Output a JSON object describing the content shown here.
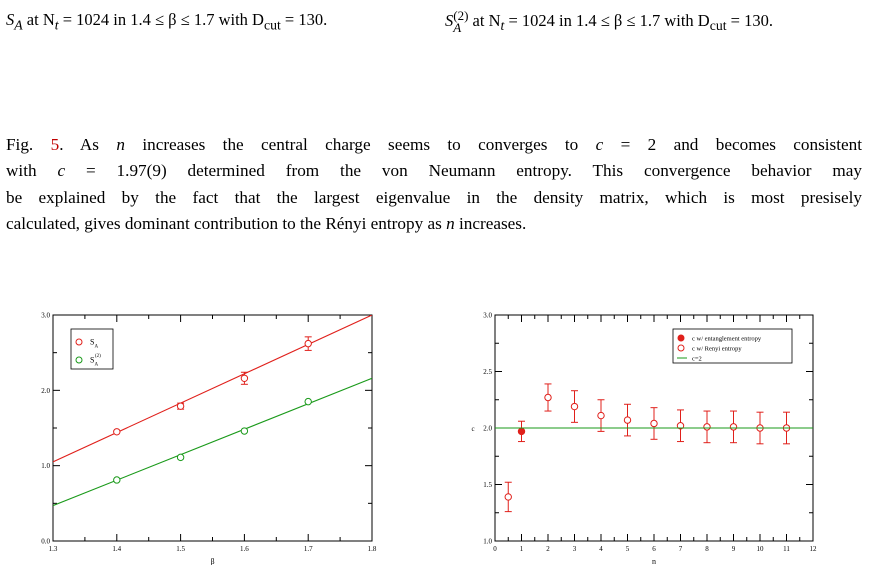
{
  "captions": {
    "left": {
      "prefix": "S",
      "sub": "A",
      "rest": " at N",
      "rest_sub": "t",
      "tail": " = 1024 in 1.4 ≤ β ≤ 1.7 with D",
      "tail_sub": "cut",
      "end": " = 130."
    },
    "right": {
      "prefix": "S",
      "sup": "(2)",
      "sub": "A",
      "rest": " at N",
      "rest_sub": "t",
      "tail": " = 1024 in 1.4 ≤ β ≤ 1.7 with D",
      "tail_sub": "cut",
      "end": " = 130."
    }
  },
  "paragraph": {
    "fig_ref": "Fig. ",
    "fig_num": "5",
    "line1_rest": ".  As n increases the central charge seems to converges to c = 2 and becomes consistent",
    "line2": "with c = 1.97(9) determined from the von Neumann entropy.  This convergence behavior may",
    "line3": "be explained by the fact that the largest eigenvalue in the density matrix, which is most presisely",
    "line4": "calculated, gives dominant contribution to the Rényi entropy as n increases."
  },
  "colors": {
    "red": "#e0201b",
    "green": "#1a9a1a",
    "link": "#c00000"
  },
  "chart_data": [
    {
      "type": "scatter",
      "xlabel": "β",
      "ylabel": "",
      "xlim": [
        1.3,
        1.8
      ],
      "ylim": [
        0.0,
        3.0
      ],
      "xticks": [
        "1.3",
        "1.4",
        "1.5",
        "1.6",
        "1.7",
        "1.8"
      ],
      "yticks": [
        "0.0",
        "1.0",
        "2.0",
        "3.0"
      ],
      "legend_position": "top-left",
      "series": [
        {
          "name": "S",
          "name_sub": "A",
          "color": "red",
          "marker": "open-circle",
          "x": [
            1.4,
            1.5,
            1.6,
            1.7
          ],
          "y": [
            1.45,
            1.79,
            2.16,
            2.62
          ],
          "err": [
            0.0,
            0.04,
            0.08,
            0.09
          ],
          "fit": {
            "x": [
              1.3,
              1.8
            ],
            "y": [
              1.05,
              3.0
            ]
          }
        },
        {
          "name": "S",
          "name_sub": "A",
          "name_sup": "(2)",
          "color": "green",
          "marker": "open-circle",
          "x": [
            1.4,
            1.5,
            1.6,
            1.7
          ],
          "y": [
            0.81,
            1.11,
            1.46,
            1.85
          ],
          "err": [
            0.0,
            0.0,
            0.0,
            0.0
          ],
          "fit": {
            "x": [
              1.3,
              1.8
            ],
            "y": [
              0.47,
              2.16
            ]
          }
        }
      ]
    },
    {
      "type": "scatter",
      "xlabel": "n",
      "ylabel": "c",
      "xlim": [
        0,
        12
      ],
      "ylim": [
        1.0,
        3.0
      ],
      "xticks": [
        "0",
        "1",
        "2",
        "3",
        "4",
        "5",
        "6",
        "7",
        "8",
        "9",
        "10",
        "11",
        "12"
      ],
      "yticks": [
        "1.0",
        "1.5",
        "2.0",
        "2.5",
        "3.0"
      ],
      "legend_position": "top-right",
      "series": [
        {
          "name": "c w/ entanglement entropy",
          "color": "red",
          "marker": "filled-circle",
          "x": [
            1
          ],
          "y": [
            1.97
          ],
          "err": [
            0.09
          ]
        },
        {
          "name": "c w/ Renyi entropy",
          "color": "red",
          "marker": "open-circle",
          "x": [
            0.5,
            2,
            3,
            4,
            5,
            6,
            7,
            8,
            9,
            10,
            11
          ],
          "y": [
            1.39,
            2.27,
            2.19,
            2.11,
            2.07,
            2.04,
            2.02,
            2.01,
            2.01,
            2.0,
            2.0
          ],
          "err": [
            0.13,
            0.12,
            0.14,
            0.14,
            0.14,
            0.14,
            0.14,
            0.14,
            0.14,
            0.14,
            0.14
          ]
        },
        {
          "name": "c=2",
          "color": "green",
          "marker": "line",
          "x": [
            0,
            12
          ],
          "y": [
            2.0,
            2.0
          ]
        }
      ]
    }
  ]
}
